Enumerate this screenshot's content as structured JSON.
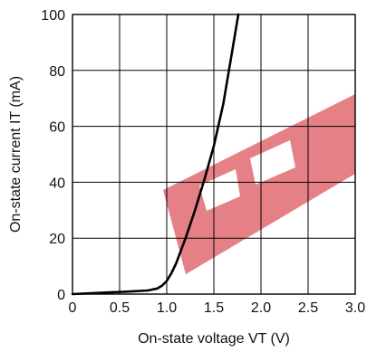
{
  "chart_data": {
    "type": "line",
    "title": "",
    "xlabel": "On-state voltage VT (V)",
    "ylabel": "On-state current IT (mA)",
    "xlim": [
      0,
      3.0
    ],
    "ylim": [
      0,
      100
    ],
    "x_ticks": [
      "0",
      "0.5",
      "1.0",
      "1.5",
      "2.0",
      "2.5",
      "3.0"
    ],
    "y_ticks": [
      "0",
      "20",
      "40",
      "60",
      "80",
      "100"
    ],
    "grid": true,
    "line_color": "#000000",
    "series": [
      {
        "x": [
          0,
          0.2,
          0.4,
          0.6,
          0.8,
          0.9,
          0.95,
          1.0,
          1.05,
          1.1,
          1.15,
          1.2,
          1.25,
          1.3,
          1.4,
          1.5,
          1.6,
          1.7,
          1.76
        ],
        "y": [
          0,
          0.3,
          0.6,
          0.9,
          1.3,
          2.0,
          3.0,
          4.7,
          7.5,
          11,
          15.5,
          20,
          25,
          30,
          41,
          53,
          68,
          88,
          100
        ]
      }
    ],
    "watermark": {
      "description": "red faded logo band across plot",
      "color": "#e06a72"
    }
  }
}
